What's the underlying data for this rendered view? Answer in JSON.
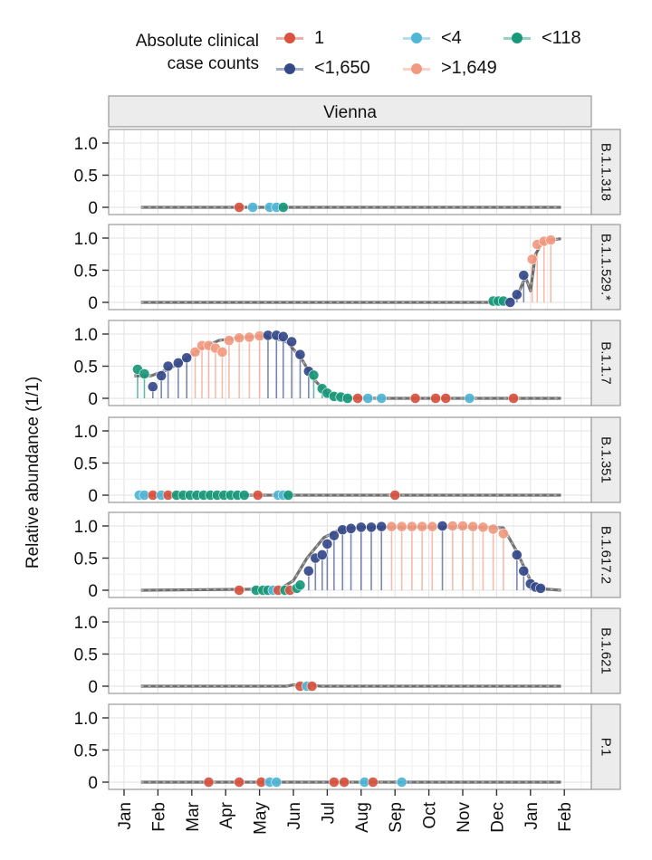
{
  "legend": {
    "title_line1": "Absolute clinical",
    "title_line2": "case counts",
    "items": [
      {
        "key": "c1",
        "label": "1",
        "color": "#d9523f"
      },
      {
        "key": "c4",
        "label": "<4",
        "color": "#4fb6d6"
      },
      {
        "key": "c118",
        "label": "<118",
        "color": "#17987a"
      },
      {
        "key": "c1650",
        "label": "<1,650",
        "color": "#35498a"
      },
      {
        "key": "cbig",
        "label": ">1,649",
        "color": "#f29a80"
      }
    ]
  },
  "chart_data": {
    "type": "scatter",
    "title": "Vienna",
    "facet_title": "Vienna",
    "xlabel": "",
    "ylabel": "Relative abundance (1/1)",
    "x_unit": "months since Jan (first year); 12 = Jan next year",
    "xlim": [
      -0.45,
      13.8
    ],
    "ylim": [
      -0.05,
      1.1
    ],
    "x_ticks": [
      {
        "value": 0,
        "label": "Jan"
      },
      {
        "value": 1,
        "label": "Feb"
      },
      {
        "value": 2,
        "label": "Mar"
      },
      {
        "value": 3,
        "label": "Apr"
      },
      {
        "value": 4,
        "label": "May"
      },
      {
        "value": 5,
        "label": "Jun"
      },
      {
        "value": 6,
        "label": "Jul"
      },
      {
        "value": 7,
        "label": "Aug"
      },
      {
        "value": 8,
        "label": "Sep"
      },
      {
        "value": 9,
        "label": "Oct"
      },
      {
        "value": 10,
        "label": "Nov"
      },
      {
        "value": 11,
        "label": "Dec"
      },
      {
        "value": 12,
        "label": "Jan"
      },
      {
        "value": 13,
        "label": "Feb"
      }
    ],
    "y_ticks": [
      {
        "value": 0,
        "label": "0"
      },
      {
        "value": 0.5,
        "label": "0.5"
      },
      {
        "value": 1.0,
        "label": "1.0"
      }
    ],
    "grid": true,
    "legend_position": "top",
    "series_range": [
      0.5,
      12.9
    ],
    "panels": [
      {
        "name": "B.1.1.318",
        "smooth": [
          [
            0.5,
            0
          ],
          [
            12.9,
            0
          ]
        ],
        "points": [
          [
            3.4,
            0,
            "c1"
          ],
          [
            3.8,
            0,
            "c4"
          ],
          [
            4.3,
            0,
            "c4"
          ],
          [
            4.5,
            0,
            "c4"
          ],
          [
            4.7,
            0,
            "c118"
          ]
        ]
      },
      {
        "name": "B.1.1.529.*",
        "smooth": [
          [
            0.5,
            0
          ],
          [
            10.8,
            0
          ],
          [
            11.3,
            0.01
          ],
          [
            11.6,
            0.08
          ],
          [
            11.85,
            0.4
          ],
          [
            12.0,
            0.18
          ],
          [
            12.15,
            0.75
          ],
          [
            12.35,
            0.93
          ],
          [
            12.6,
            0.97
          ],
          [
            12.9,
            0.99
          ]
        ],
        "points": [
          [
            10.9,
            0.02,
            "c118"
          ],
          [
            11.05,
            0.02,
            "c118"
          ],
          [
            11.2,
            0.02,
            "c118"
          ],
          [
            11.4,
            0.0,
            "c1650"
          ],
          [
            11.6,
            0.12,
            "c1650"
          ],
          [
            11.8,
            0.42,
            "c1650"
          ],
          [
            12.05,
            0.67,
            "cbig"
          ],
          [
            12.2,
            0.9,
            "cbig"
          ],
          [
            12.4,
            0.95,
            "cbig"
          ],
          [
            12.6,
            0.97,
            "cbig"
          ]
        ]
      },
      {
        "name": "B.1.1.7",
        "smooth": [
          [
            0.3,
            0.35
          ],
          [
            0.8,
            0.35
          ],
          [
            1.3,
            0.45
          ],
          [
            1.8,
            0.6
          ],
          [
            2.3,
            0.78
          ],
          [
            2.8,
            0.9
          ],
          [
            3.5,
            0.95
          ],
          [
            4.2,
            0.97
          ],
          [
            4.8,
            0.88
          ],
          [
            5.2,
            0.65
          ],
          [
            5.6,
            0.3
          ],
          [
            6.0,
            0.07
          ],
          [
            6.6,
            0.01
          ],
          [
            7.5,
            0
          ],
          [
            12.9,
            0
          ]
        ],
        "points": [
          [
            0.4,
            0.45,
            "c118"
          ],
          [
            0.6,
            0.38,
            "c118"
          ],
          [
            0.85,
            0.18,
            "c1650"
          ],
          [
            1.1,
            0.35,
            "c1650"
          ],
          [
            1.3,
            0.5,
            "c1650"
          ],
          [
            1.6,
            0.55,
            "c1650"
          ],
          [
            1.85,
            0.63,
            "c1650"
          ],
          [
            2.1,
            0.72,
            "cbig"
          ],
          [
            2.3,
            0.82,
            "cbig"
          ],
          [
            2.5,
            0.82,
            "cbig"
          ],
          [
            2.7,
            0.78,
            "cbig"
          ],
          [
            2.9,
            0.72,
            "cbig"
          ],
          [
            3.1,
            0.9,
            "cbig"
          ],
          [
            3.4,
            0.94,
            "cbig"
          ],
          [
            3.7,
            0.95,
            "cbig"
          ],
          [
            4.0,
            0.97,
            "cbig"
          ],
          [
            4.25,
            0.98,
            "c1650"
          ],
          [
            4.5,
            0.98,
            "c1650"
          ],
          [
            4.7,
            0.96,
            "c1650"
          ],
          [
            4.95,
            0.88,
            "c1650"
          ],
          [
            5.2,
            0.68,
            "c1650"
          ],
          [
            5.45,
            0.42,
            "c1650"
          ],
          [
            5.6,
            0.36,
            "c118"
          ],
          [
            5.85,
            0.15,
            "c118"
          ],
          [
            6.0,
            0.08,
            "c118"
          ],
          [
            6.2,
            0.03,
            "c118"
          ],
          [
            6.4,
            0.02,
            "c118"
          ],
          [
            6.6,
            0.0,
            "c118"
          ],
          [
            6.9,
            0,
            "c1"
          ],
          [
            7.2,
            0,
            "c4"
          ],
          [
            7.6,
            0,
            "c4"
          ],
          [
            8.6,
            0,
            "c1"
          ],
          [
            9.2,
            0,
            "c1"
          ],
          [
            9.5,
            0,
            "c1"
          ],
          [
            10.2,
            0,
            "c4"
          ],
          [
            11.5,
            0,
            "c1"
          ]
        ]
      },
      {
        "name": "B.1.351",
        "smooth": [
          [
            0.5,
            0
          ],
          [
            12.9,
            0
          ]
        ],
        "points": [
          [
            0.45,
            0,
            "c4"
          ],
          [
            0.6,
            0,
            "c4"
          ],
          [
            0.85,
            0,
            "c1"
          ],
          [
            1.1,
            0,
            "c4"
          ],
          [
            1.3,
            0,
            "c1"
          ],
          [
            1.55,
            0,
            "c118"
          ],
          [
            1.75,
            0,
            "c118"
          ],
          [
            1.95,
            0,
            "c118"
          ],
          [
            2.15,
            0,
            "c118"
          ],
          [
            2.35,
            0,
            "c118"
          ],
          [
            2.55,
            0,
            "c118"
          ],
          [
            2.75,
            0,
            "c118"
          ],
          [
            2.95,
            0,
            "c118"
          ],
          [
            3.15,
            0,
            "c118"
          ],
          [
            3.35,
            0,
            "c118"
          ],
          [
            3.55,
            0,
            "c118"
          ],
          [
            3.95,
            0,
            "c1"
          ],
          [
            4.55,
            0,
            "c4"
          ],
          [
            4.7,
            0,
            "c4"
          ],
          [
            4.85,
            0,
            "c118"
          ],
          [
            8.0,
            0,
            "c1"
          ]
        ]
      },
      {
        "name": "B.1.617.2",
        "smooth": [
          [
            0.5,
            0
          ],
          [
            4.6,
            0.02
          ],
          [
            5.0,
            0.15
          ],
          [
            5.4,
            0.5
          ],
          [
            5.9,
            0.82
          ],
          [
            6.4,
            0.95
          ],
          [
            7.0,
            0.98
          ],
          [
            10.5,
            0.98
          ],
          [
            11.2,
            0.97
          ],
          [
            11.6,
            0.6
          ],
          [
            12.0,
            0.15
          ],
          [
            12.4,
            0.02
          ],
          [
            12.9,
            0
          ]
        ],
        "points": [
          [
            3.4,
            0,
            "c1"
          ],
          [
            3.9,
            0,
            "c118"
          ],
          [
            4.1,
            0,
            "c118"
          ],
          [
            4.25,
            0,
            "c118"
          ],
          [
            4.4,
            0,
            "c4"
          ],
          [
            4.55,
            0,
            "c1"
          ],
          [
            4.75,
            0,
            "c118"
          ],
          [
            4.9,
            0,
            "c1"
          ],
          [
            5.1,
            0.03,
            "c118"
          ],
          [
            5.2,
            0.08,
            "c118"
          ],
          [
            5.45,
            0.3,
            "c1650"
          ],
          [
            5.65,
            0.5,
            "c1650"
          ],
          [
            5.85,
            0.55,
            "c1650"
          ],
          [
            6.0,
            0.72,
            "c1650"
          ],
          [
            6.2,
            0.85,
            "c1650"
          ],
          [
            6.45,
            0.94,
            "c1650"
          ],
          [
            6.7,
            0.96,
            "c1650"
          ],
          [
            7.0,
            0.98,
            "c1650"
          ],
          [
            7.3,
            0.98,
            "c1650"
          ],
          [
            7.6,
            0.99,
            "c1650"
          ],
          [
            7.9,
            0.99,
            "cbig"
          ],
          [
            8.2,
            0.99,
            "cbig"
          ],
          [
            8.5,
            0.99,
            "cbig"
          ],
          [
            8.8,
            0.99,
            "cbig"
          ],
          [
            9.1,
            0.99,
            "cbig"
          ],
          [
            9.4,
            1.0,
            "c1650"
          ],
          [
            9.7,
            1.0,
            "cbig"
          ],
          [
            10.0,
            1.0,
            "cbig"
          ],
          [
            10.3,
            0.99,
            "cbig"
          ],
          [
            10.6,
            0.98,
            "cbig"
          ],
          [
            10.9,
            0.95,
            "cbig"
          ],
          [
            11.2,
            0.88,
            "cbig"
          ],
          [
            11.6,
            0.55,
            "c1650"
          ],
          [
            11.8,
            0.3,
            "c1650"
          ],
          [
            12.0,
            0.1,
            "c1650"
          ],
          [
            12.15,
            0.05,
            "c1650"
          ],
          [
            12.3,
            0.03,
            "c1650"
          ]
        ]
      },
      {
        "name": "B.1.621",
        "smooth": [
          [
            0.5,
            0
          ],
          [
            4.8,
            0
          ],
          [
            5.0,
            0.02
          ],
          [
            5.5,
            0.02
          ],
          [
            5.8,
            0
          ],
          [
            12.9,
            0
          ]
        ],
        "points": [
          [
            5.2,
            0,
            "c1"
          ],
          [
            5.4,
            0,
            "c4"
          ],
          [
            5.55,
            0,
            "c1"
          ]
        ]
      },
      {
        "name": "P.1",
        "smooth": [
          [
            0.5,
            0
          ],
          [
            12.9,
            0
          ]
        ],
        "points": [
          [
            2.5,
            0,
            "c1"
          ],
          [
            3.4,
            0,
            "c1"
          ],
          [
            4.05,
            0,
            "c1"
          ],
          [
            4.3,
            0,
            "c4"
          ],
          [
            4.5,
            0,
            "c4"
          ],
          [
            6.2,
            0,
            "c1"
          ],
          [
            6.5,
            0,
            "c1"
          ],
          [
            7.1,
            0,
            "c4"
          ],
          [
            7.35,
            0,
            "c1"
          ],
          [
            8.2,
            0,
            "c4"
          ]
        ]
      }
    ]
  }
}
